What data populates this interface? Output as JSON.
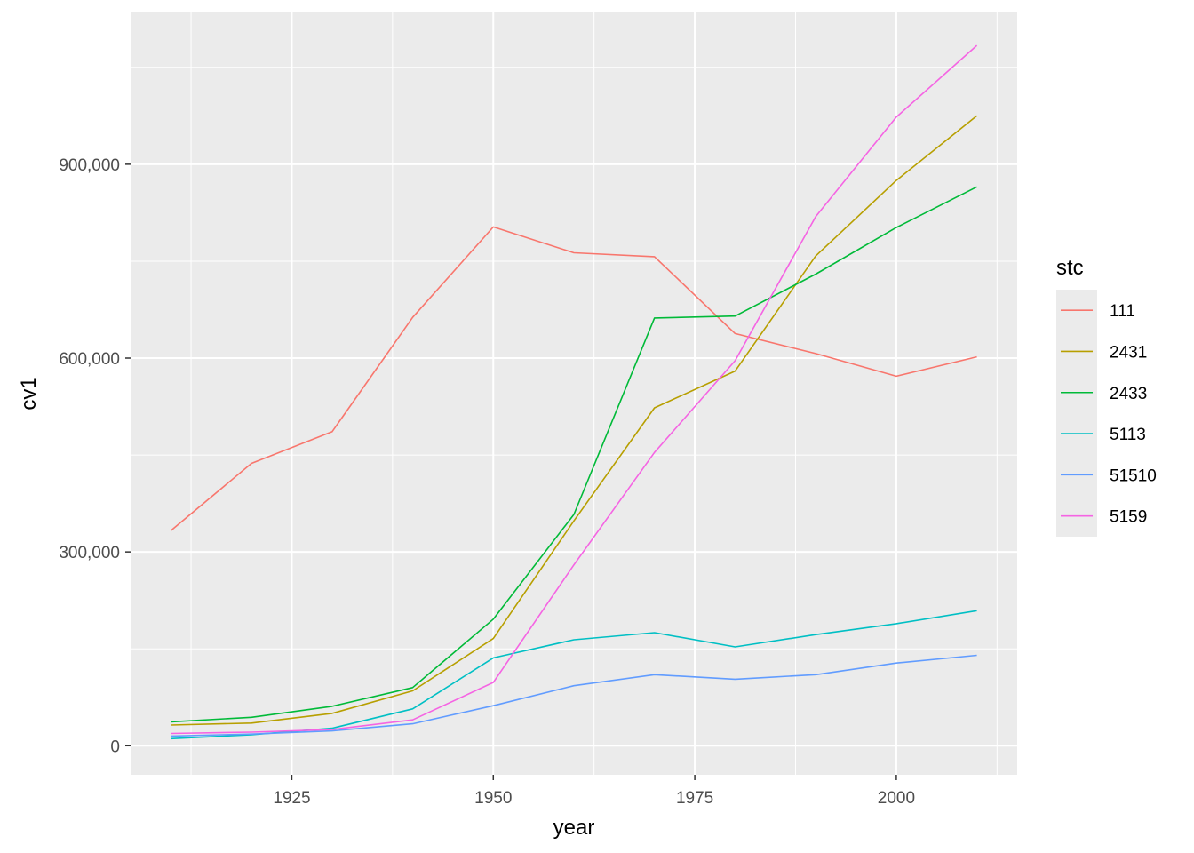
{
  "chart_data": {
    "type": "line",
    "xlabel": "year",
    "ylabel": "cv1",
    "xlim": [
      1905,
      2015
    ],
    "ylim": [
      -45000,
      1135000
    ],
    "x_ticks": [
      1925,
      1950,
      1975,
      2000
    ],
    "x_tick_labels": [
      "1925",
      "1950",
      "1975",
      "2000"
    ],
    "y_ticks": [
      0,
      300000,
      600000,
      900000
    ],
    "y_tick_labels": [
      "0",
      "300,000",
      "600,000",
      "900,000"
    ],
    "grid": true,
    "legend": {
      "title": "stc",
      "position": "right"
    },
    "x": [
      1910,
      1920,
      1930,
      1940,
      1950,
      1960,
      1970,
      1980,
      1990,
      2000,
      2010
    ],
    "series": [
      {
        "name": "111",
        "color": "#F8766D",
        "values": [
          333000,
          437000,
          486000,
          663000,
          803000,
          763000,
          757000,
          638000,
          607000,
          572000,
          602000
        ]
      },
      {
        "name": "2431",
        "color": "#B79F00",
        "values": [
          32000,
          35000,
          50000,
          85000,
          166000,
          348000,
          523000,
          580000,
          758000,
          875000,
          975000
        ]
      },
      {
        "name": "2433",
        "color": "#00BA38",
        "values": [
          37000,
          44000,
          61000,
          90000,
          196000,
          358000,
          662000,
          665000,
          730000,
          802000,
          865000
        ]
      },
      {
        "name": "5113",
        "color": "#00BFC4",
        "values": [
          11000,
          17000,
          27000,
          57000,
          136000,
          164000,
          175000,
          153000,
          172000,
          189000,
          209000
        ]
      },
      {
        "name": "51510",
        "color": "#619CFF",
        "values": [
          15000,
          18000,
          23000,
          34000,
          62000,
          93000,
          110000,
          103000,
          110000,
          128000,
          140000
        ]
      },
      {
        "name": "5159",
        "color": "#F564E3",
        "values": [
          19000,
          21000,
          25000,
          40000,
          98000,
          280000,
          454000,
          596000,
          819000,
          973000,
          1084000
        ]
      }
    ]
  }
}
